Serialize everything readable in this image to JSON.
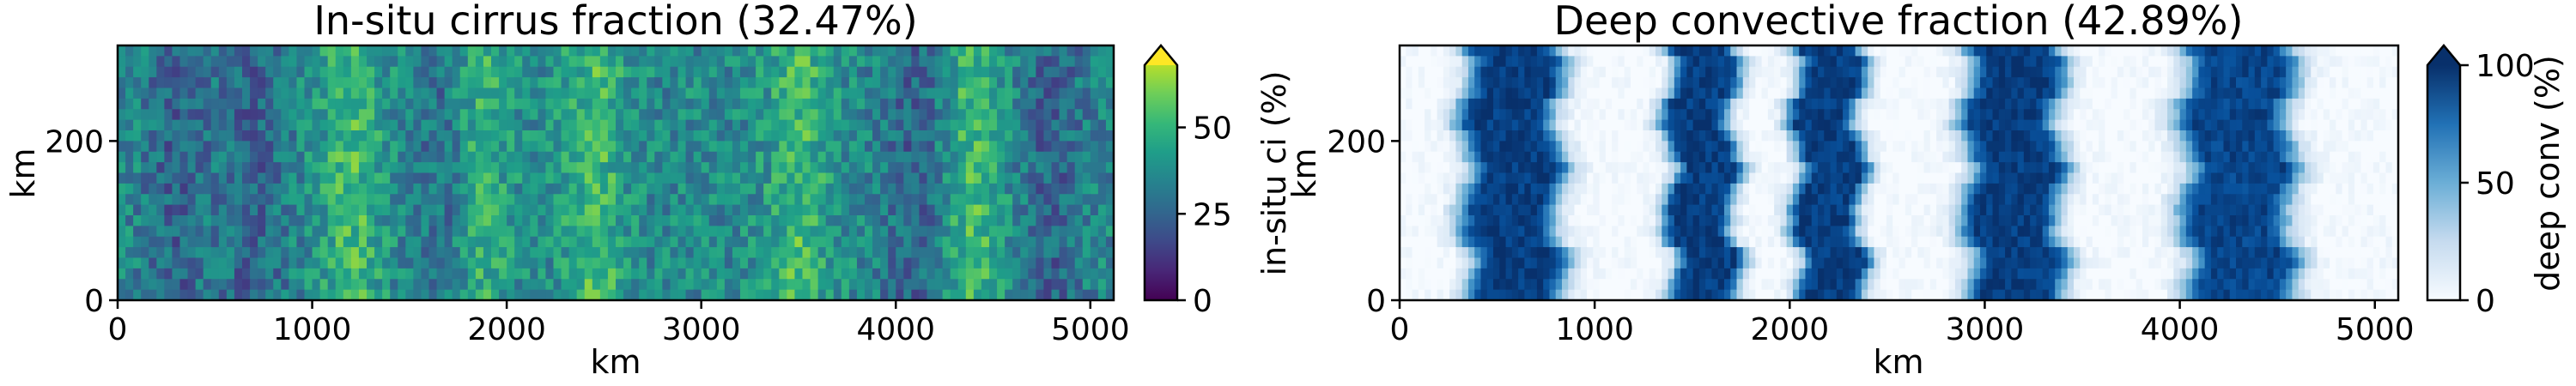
{
  "chart_data": [
    {
      "type": "heatmap",
      "title": "In-situ cirrus fraction (32.47%)",
      "xlabel": "km",
      "ylabel": "km",
      "xlim": [
        0,
        5120
      ],
      "ylim": [
        0,
        320
      ],
      "xticks": [
        0,
        1000,
        2000,
        3000,
        4000,
        5000
      ],
      "yticks": [
        0,
        200
      ],
      "colormap": "viridis",
      "colorbar": {
        "label": "in-situ ci (%)",
        "range": [
          0,
          68
        ],
        "ticks": [
          0,
          25,
          50
        ],
        "extend": "max"
      },
      "field_summary": {
        "description_values_percent": "noisy field, mostly 20-45%",
        "higher_x_km": [
          1200,
          1850,
          2450,
          3500,
          4400
        ],
        "lower_x_km": [
          300,
          700,
          1700,
          4100,
          4800
        ]
      }
    },
    {
      "type": "heatmap",
      "title": "Deep convective fraction (42.89%)",
      "xlabel": "km",
      "ylabel": "km",
      "xlim": [
        0,
        5120
      ],
      "ylim": [
        0,
        320
      ],
      "xticks": [
        0,
        1000,
        2000,
        3000,
        4000,
        5000
      ],
      "yticks": [
        0,
        200
      ],
      "colormap": "Blues",
      "colorbar": {
        "label": "deep conv (%)",
        "range": [
          0,
          100
        ],
        "ticks": [
          0,
          50,
          100
        ],
        "extend": "max"
      },
      "bands": [
        {
          "center_km": 580,
          "width_km": 420,
          "peak_percent": 95
        },
        {
          "center_km": 1550,
          "width_km": 300,
          "peak_percent": 95
        },
        {
          "center_km": 2200,
          "width_km": 300,
          "peak_percent": 95
        },
        {
          "center_km": 3150,
          "width_km": 420,
          "peak_percent": 95
        },
        {
          "center_km": 4300,
          "width_km": 480,
          "peak_percent": 92
        }
      ]
    }
  ]
}
